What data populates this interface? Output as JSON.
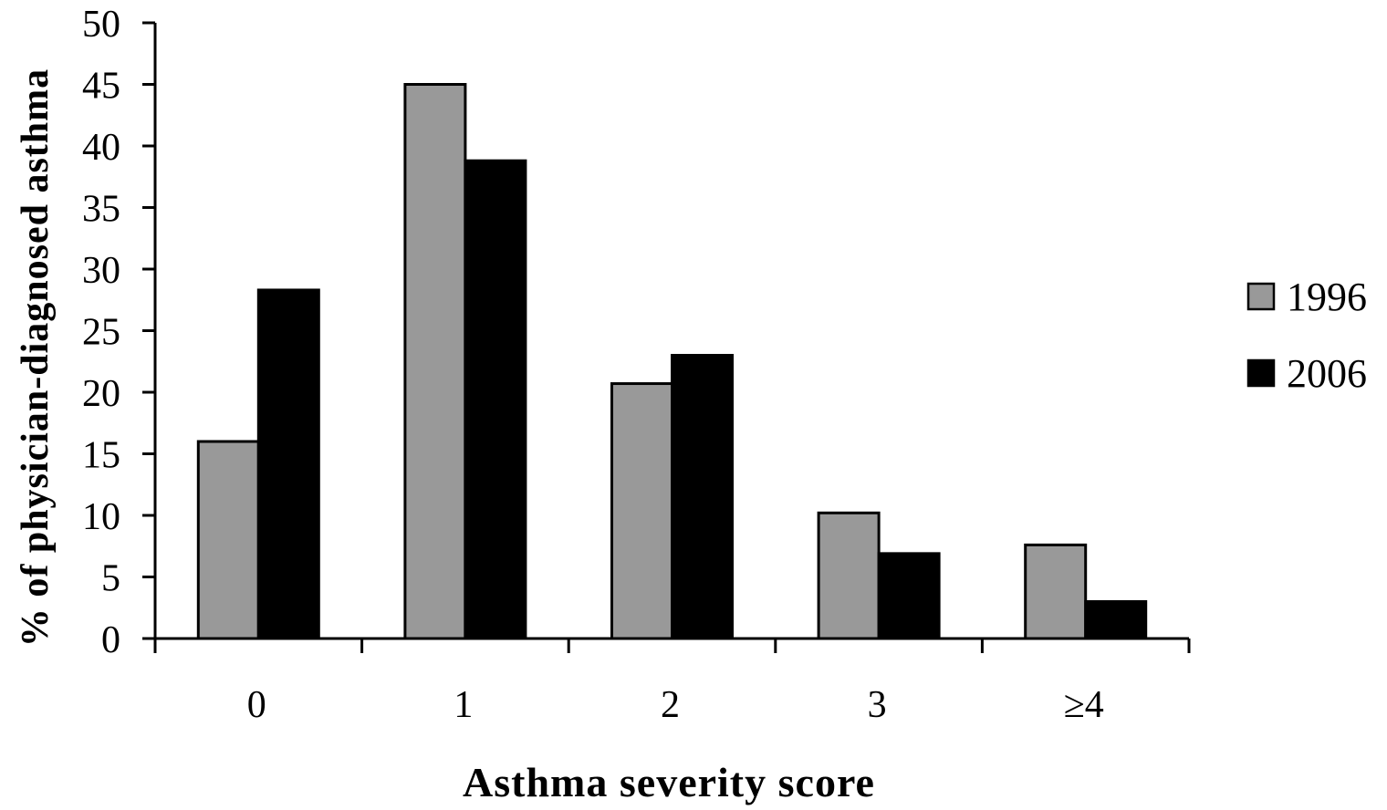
{
  "chart_data": {
    "type": "bar",
    "title": "",
    "xlabel": "Asthma severity score",
    "ylabel": "% of physician-diagnosed asthma",
    "categories": [
      "0",
      "1",
      "2",
      "3",
      "≥4"
    ],
    "series": [
      {
        "name": "1996",
        "values": [
          16.0,
          45.0,
          20.7,
          10.2,
          7.6
        ],
        "color": "#999999"
      },
      {
        "name": "2006",
        "values": [
          28.3,
          38.8,
          23.0,
          6.9,
          3.0
        ],
        "color": "#000000"
      }
    ],
    "ylim": [
      0,
      50
    ],
    "yticks": [
      "0",
      "5",
      "10",
      "15",
      "20",
      "25",
      "30",
      "35",
      "40",
      "45",
      "50"
    ],
    "grid": false,
    "legend": "right"
  }
}
